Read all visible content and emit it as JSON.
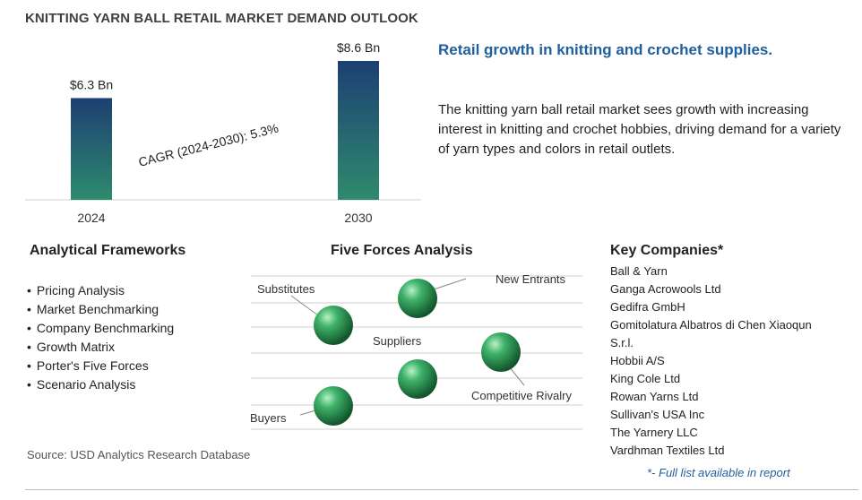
{
  "page_title": "KNITTING YARN BALL RETAIL MARKET DEMAND OUTLOOK",
  "chart_data": {
    "type": "bar",
    "categories": [
      "2024",
      "2030"
    ],
    "values": [
      6.3,
      8.6
    ],
    "value_labels": [
      "$6.3 Bn",
      "$8.6 Bn"
    ],
    "ylim": [
      0,
      8.6
    ],
    "grid": false,
    "annotation": "CAGR (2024-2030):  5.3%",
    "bar_gradient": [
      "#2e8b6e",
      "#1d3f73"
    ]
  },
  "headline": "Retail growth in knitting and crochet supplies.",
  "description": "The knitting yarn ball retail market sees growth with increasing interest in knitting and crochet hobbies, driving demand for a variety of yarn types and colors in retail outlets.",
  "frameworks": {
    "title": "Analytical Frameworks",
    "items": [
      "Pricing Analysis",
      "Market Benchmarking",
      "Company Benchmarking",
      "Growth Matrix",
      "Porter's Five Forces",
      "Scenario Analysis"
    ]
  },
  "five_forces": {
    "title": "Five Forces Analysis",
    "labels": {
      "new_entrants": "New Entrants",
      "substitutes": "Substitutes",
      "suppliers": "Suppliers",
      "competitive_rivalry": "Competitive Rivalry",
      "buyers": "Buyers"
    }
  },
  "companies": {
    "title": "Key Companies*",
    "items": [
      "Ball & Yarn",
      "Ganga Acrowools Ltd",
      "Gedifra GmbH",
      "Gomitolatura Albatros di Chen Xiaoqun",
      "S.r.l.",
      "Hobbii A/S",
      "King Cole Ltd",
      "Rowan Yarns Ltd",
      "Sullivan's USA Inc",
      "The Yarnery LLC",
      "Vardhman Textiles Ltd"
    ],
    "footnote": "*- Full list available in report"
  },
  "source": "Source: USD Analytics Research Database",
  "colors": {
    "accent": "#1f5f9e",
    "sphere": "#2e9e5e"
  }
}
